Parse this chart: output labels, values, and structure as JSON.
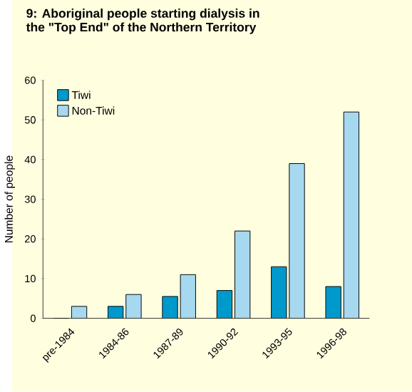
{
  "chart_data": {
    "type": "bar",
    "title": "9: Aboriginal people starting dialysis in\nthe \"Top End\" of the Northern Territory",
    "ylabel": "Number of people",
    "categories": [
      "pre-1984",
      "1984-86",
      "1987-89",
      "1990-92",
      "1993-95",
      "1996-98"
    ],
    "series": [
      {
        "name": "Tiwi",
        "color": "#0099cc",
        "values": [
          0,
          3,
          5.5,
          7,
          13,
          8
        ]
      },
      {
        "name": "Non-Tiwi",
        "color": "#a6d8f0",
        "values": [
          3,
          6,
          11,
          22,
          39,
          52
        ]
      }
    ],
    "ylim": [
      0,
      60
    ],
    "yticks": [
      0,
      10,
      20,
      30,
      40,
      50,
      60
    ],
    "legend": "top left",
    "grid": false
  }
}
